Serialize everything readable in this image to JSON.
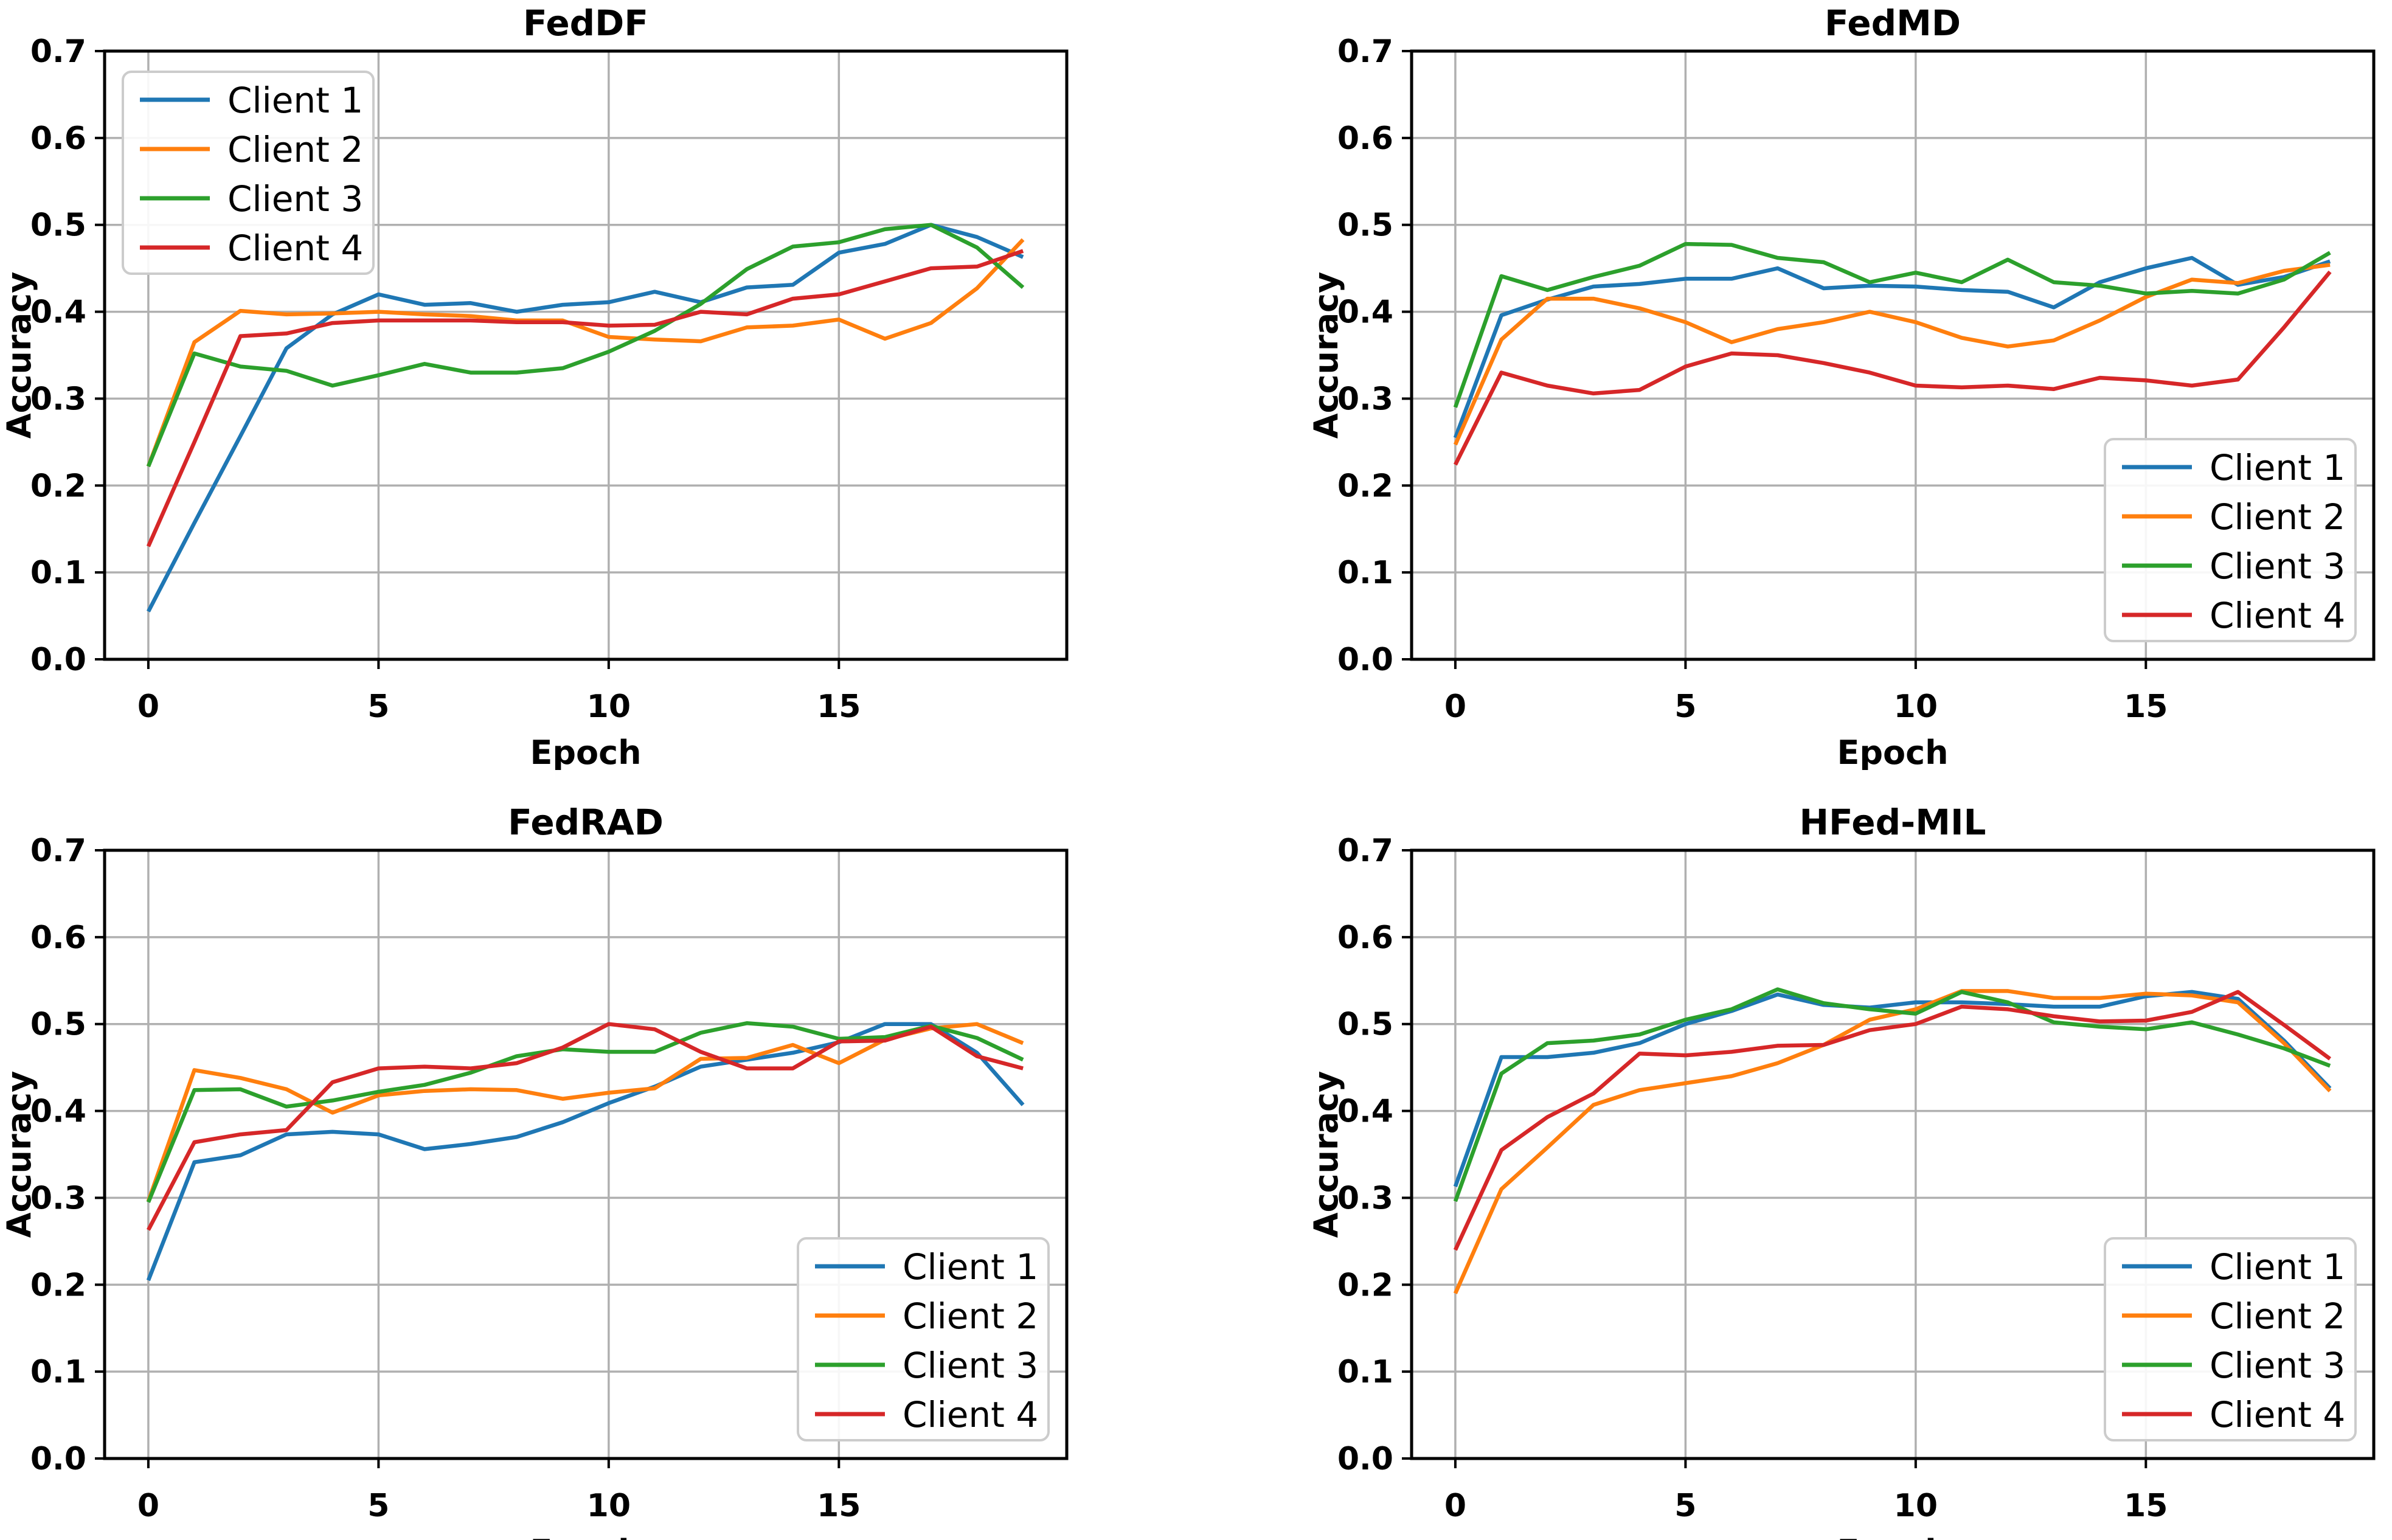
{
  "figure": {
    "background": "#ffffff",
    "grid_color": "#b0b0b0",
    "spine_color": "#000000",
    "text_color": "#000000",
    "legend_border_color": "#cccccc",
    "legend_background": "#ffffff"
  },
  "axes": {
    "xlabel": "Epoch",
    "ylabel": "Accuracy",
    "x_tick_labels": [
      "0",
      "5",
      "10",
      "15"
    ],
    "x_tick_values": [
      0,
      5,
      10,
      15
    ],
    "y_tick_labels": [
      "0.0",
      "0.1",
      "0.2",
      "0.3",
      "0.4",
      "0.5",
      "0.6",
      "0.7"
    ],
    "y_tick_values": [
      0.0,
      0.1,
      0.2,
      0.3,
      0.4,
      0.5,
      0.6,
      0.7
    ],
    "xlim": [
      -0.95,
      19.95
    ],
    "ylim": [
      0.0,
      0.7
    ],
    "grid": true
  },
  "legend": {
    "labels": [
      "Client 1",
      "Client 2",
      "Client 3",
      "Client 4"
    ],
    "colors": [
      "#1f77b4",
      "#ff7f0e",
      "#2ca02c",
      "#d62728"
    ]
  },
  "chart_data": [
    {
      "type": "line",
      "title": "FedDF",
      "xlabel": "Epoch",
      "ylabel": "Accuracy",
      "legend_position": "upper-left",
      "x": [
        0,
        1,
        2,
        3,
        4,
        5,
        6,
        7,
        8,
        9,
        10,
        11,
        12,
        13,
        14,
        15,
        16,
        17,
        18,
        19
      ],
      "xlim": [
        -0.95,
        19.95
      ],
      "ylim": [
        0.0,
        0.7
      ],
      "series": [
        {
          "name": "Client 1",
          "color": "#1f77b4",
          "values": [
            0.055,
            0.157,
            0.257,
            0.358,
            0.397,
            0.42,
            0.408,
            0.41,
            0.4,
            0.408,
            0.411,
            0.423,
            0.411,
            0.428,
            0.431,
            0.468,
            0.478,
            0.5,
            0.486,
            0.463
          ]
        },
        {
          "name": "Client 2",
          "color": "#ff7f0e",
          "values": [
            0.222,
            0.365,
            0.401,
            0.397,
            0.398,
            0.4,
            0.397,
            0.395,
            0.39,
            0.39,
            0.371,
            0.368,
            0.366,
            0.382,
            0.384,
            0.391,
            0.369,
            0.387,
            0.427,
            0.483
          ]
        },
        {
          "name": "Client 3",
          "color": "#2ca02c",
          "values": [
            0.222,
            0.352,
            0.337,
            0.332,
            0.315,
            0.327,
            0.34,
            0.33,
            0.33,
            0.335,
            0.354,
            0.378,
            0.409,
            0.449,
            0.475,
            0.48,
            0.495,
            0.5,
            0.474,
            0.428
          ]
        },
        {
          "name": "Client 4",
          "color": "#d62728",
          "values": [
            0.13,
            0.25,
            0.372,
            0.375,
            0.387,
            0.39,
            0.39,
            0.39,
            0.388,
            0.388,
            0.384,
            0.385,
            0.4,
            0.397,
            0.415,
            0.42,
            0.435,
            0.45,
            0.452,
            0.47
          ]
        }
      ]
    },
    {
      "type": "line",
      "title": "FedMD",
      "xlabel": "Epoch",
      "ylabel": "Accuracy",
      "legend_position": "lower-right",
      "x": [
        0,
        1,
        2,
        3,
        4,
        5,
        6,
        7,
        8,
        9,
        10,
        11,
        12,
        13,
        14,
        15,
        16,
        17,
        18,
        19
      ],
      "xlim": [
        -0.95,
        19.95
      ],
      "ylim": [
        0.0,
        0.7
      ],
      "series": [
        {
          "name": "Client 1",
          "color": "#1f77b4",
          "values": [
            0.255,
            0.396,
            0.414,
            0.429,
            0.432,
            0.438,
            0.438,
            0.45,
            0.427,
            0.43,
            0.429,
            0.425,
            0.423,
            0.405,
            0.434,
            0.45,
            0.462,
            0.431,
            0.44,
            0.458
          ]
        },
        {
          "name": "Client 2",
          "color": "#ff7f0e",
          "values": [
            0.247,
            0.368,
            0.415,
            0.415,
            0.404,
            0.388,
            0.365,
            0.38,
            0.388,
            0.4,
            0.388,
            0.37,
            0.36,
            0.367,
            0.39,
            0.417,
            0.437,
            0.433,
            0.447,
            0.454
          ]
        },
        {
          "name": "Client 3",
          "color": "#2ca02c",
          "values": [
            0.29,
            0.441,
            0.425,
            0.44,
            0.453,
            0.478,
            0.477,
            0.462,
            0.457,
            0.434,
            0.445,
            0.434,
            0.46,
            0.434,
            0.43,
            0.421,
            0.424,
            0.421,
            0.437,
            0.468
          ]
        },
        {
          "name": "Client 4",
          "color": "#d62728",
          "values": [
            0.224,
            0.33,
            0.315,
            0.306,
            0.31,
            0.337,
            0.352,
            0.35,
            0.341,
            0.33,
            0.315,
            0.313,
            0.315,
            0.311,
            0.324,
            0.321,
            0.315,
            0.322,
            0.382,
            0.446
          ]
        }
      ]
    },
    {
      "type": "line",
      "title": "FedRAD",
      "xlabel": "Epoch",
      "ylabel": "Accuracy",
      "legend_position": "lower-right",
      "x": [
        0,
        1,
        2,
        3,
        4,
        5,
        6,
        7,
        8,
        9,
        10,
        11,
        12,
        13,
        14,
        15,
        16,
        17,
        18,
        19
      ],
      "xlim": [
        -0.95,
        19.95
      ],
      "ylim": [
        0.0,
        0.7
      ],
      "series": [
        {
          "name": "Client 1",
          "color": "#1f77b4",
          "values": [
            0.205,
            0.341,
            0.349,
            0.373,
            0.376,
            0.373,
            0.356,
            0.362,
            0.37,
            0.387,
            0.409,
            0.428,
            0.451,
            0.459,
            0.467,
            0.479,
            0.5,
            0.5,
            0.467,
            0.407
          ]
        },
        {
          "name": "Client 2",
          "color": "#ff7f0e",
          "values": [
            0.296,
            0.447,
            0.438,
            0.425,
            0.398,
            0.418,
            0.423,
            0.425,
            0.424,
            0.414,
            0.421,
            0.426,
            0.46,
            0.461,
            0.476,
            0.455,
            0.482,
            0.495,
            0.5,
            0.478
          ]
        },
        {
          "name": "Client 3",
          "color": "#2ca02c",
          "values": [
            0.295,
            0.424,
            0.425,
            0.405,
            0.412,
            0.422,
            0.43,
            0.444,
            0.463,
            0.471,
            0.468,
            0.468,
            0.49,
            0.501,
            0.497,
            0.483,
            0.485,
            0.498,
            0.484,
            0.459
          ]
        },
        {
          "name": "Client 4",
          "color": "#d62728",
          "values": [
            0.263,
            0.364,
            0.373,
            0.378,
            0.433,
            0.449,
            0.451,
            0.449,
            0.455,
            0.473,
            0.5,
            0.494,
            0.468,
            0.449,
            0.449,
            0.48,
            0.481,
            0.497,
            0.463,
            0.449
          ]
        }
      ]
    },
    {
      "type": "line",
      "title": "HFed-MIL",
      "xlabel": "Epoch",
      "ylabel": "Accuracy",
      "legend_position": "lower-right",
      "x": [
        0,
        1,
        2,
        3,
        4,
        5,
        6,
        7,
        8,
        9,
        10,
        11,
        12,
        13,
        14,
        15,
        16,
        17,
        18,
        19
      ],
      "xlim": [
        -0.95,
        19.95
      ],
      "ylim": [
        0.0,
        0.7
      ],
      "series": [
        {
          "name": "Client 1",
          "color": "#1f77b4",
          "values": [
            0.313,
            0.462,
            0.462,
            0.467,
            0.478,
            0.5,
            0.515,
            0.534,
            0.522,
            0.519,
            0.525,
            0.525,
            0.523,
            0.52,
            0.52,
            0.532,
            0.537,
            0.529,
            0.481,
            0.426
          ]
        },
        {
          "name": "Client 2",
          "color": "#ff7f0e",
          "values": [
            0.19,
            0.31,
            0.358,
            0.407,
            0.424,
            0.432,
            0.44,
            0.455,
            0.476,
            0.505,
            0.517,
            0.538,
            0.538,
            0.53,
            0.53,
            0.535,
            0.533,
            0.525,
            0.478,
            0.423
          ]
        },
        {
          "name": "Client 3",
          "color": "#2ca02c",
          "values": [
            0.296,
            0.443,
            0.478,
            0.481,
            0.488,
            0.505,
            0.517,
            0.54,
            0.524,
            0.517,
            0.512,
            0.537,
            0.525,
            0.502,
            0.497,
            0.494,
            0.502,
            0.488,
            0.472,
            0.452
          ]
        },
        {
          "name": "Client 4",
          "color": "#d62728",
          "values": [
            0.24,
            0.355,
            0.393,
            0.42,
            0.466,
            0.464,
            0.468,
            0.475,
            0.476,
            0.493,
            0.5,
            0.52,
            0.517,
            0.509,
            0.503,
            0.504,
            0.514,
            0.537,
            0.499,
            0.46
          ]
        }
      ]
    }
  ]
}
